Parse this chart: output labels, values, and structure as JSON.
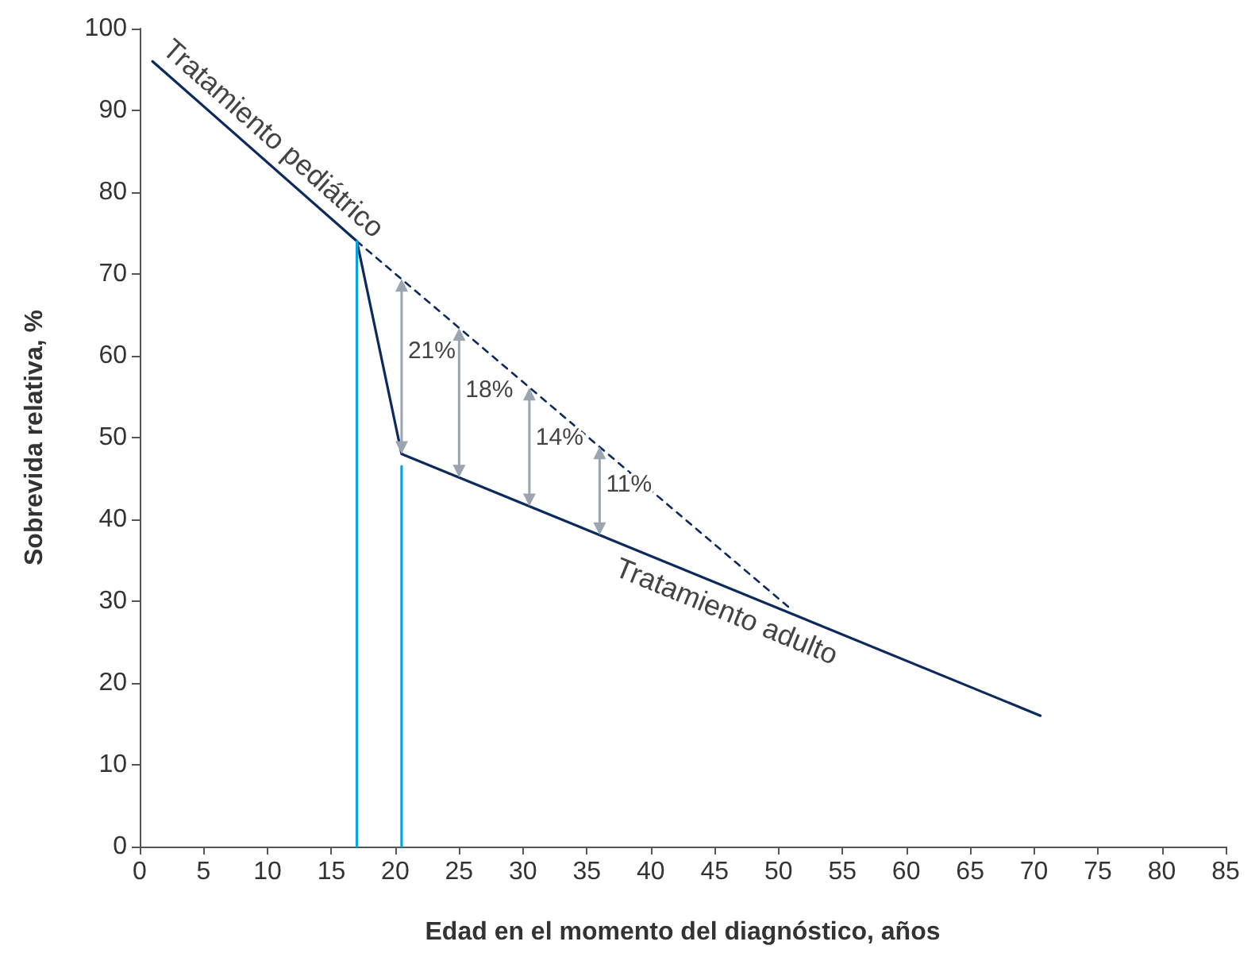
{
  "chart_data": {
    "type": "line",
    "xlabel": "Edad en el momento del diagnóstico, años",
    "ylabel": "Sobrevida relativa, %",
    "xlim": [
      0,
      85
    ],
    "xticks": [
      0,
      5,
      10,
      15,
      20,
      25,
      30,
      35,
      40,
      45,
      50,
      55,
      60,
      65,
      70,
      75,
      80,
      85
    ],
    "ylim": [
      0,
      100
    ],
    "yticks": [
      0,
      10,
      20,
      30,
      40,
      50,
      60,
      70,
      80,
      90,
      100
    ],
    "grid": false,
    "legend": false,
    "marker": "none",
    "series": [
      {
        "name": "Tratamiento pediátrico",
        "color": "#0d2a5c",
        "x": [
          1,
          17
        ],
        "values": [
          96,
          74
        ]
      },
      {
        "name": "Tratamiento adulto",
        "color": "#0d2a5c",
        "x": [
          17,
          20.5,
          70.5
        ],
        "values": [
          74,
          48,
          16
        ]
      },
      {
        "color": "#0d2a5c",
        "x": [
          17,
          51
        ],
        "values": [
          74,
          29
        ],
        "line_style": "dashed"
      },
      {
        "color": "#00a6e0",
        "x": [
          17,
          17
        ],
        "values": [
          0,
          74
        ]
      },
      {
        "color": "#00a6e0",
        "x": [
          20.5,
          20.5
        ],
        "values": [
          0,
          46.5
        ]
      }
    ],
    "annotations": [
      {
        "text": "21%",
        "x": 20.5,
        "y": 69.4
      },
      {
        "text": "18%",
        "x": 25,
        "y": 63.4
      },
      {
        "text": "14%",
        "x": 30.5,
        "y": 56.1
      },
      {
        "text": "11%",
        "x": 36,
        "y": 48.9
      }
    ]
  }
}
